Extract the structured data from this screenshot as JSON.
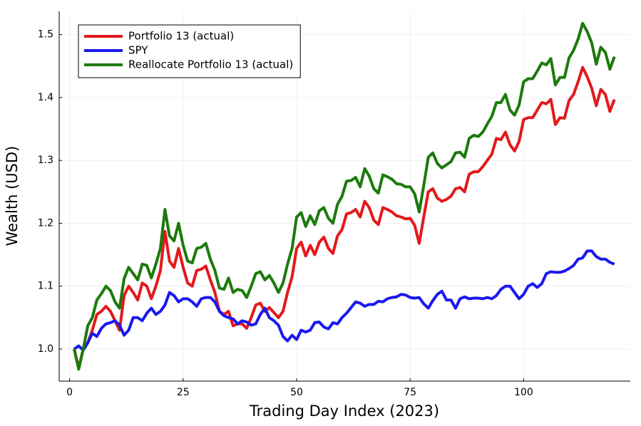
{
  "chart_data": {
    "type": "line",
    "xlabel": "Trading Day Index (2023)",
    "ylabel": "Wealth (USD)",
    "x": [
      1,
      2,
      3,
      4,
      5,
      6,
      7,
      8,
      9,
      10,
      11,
      12,
      13,
      14,
      15,
      16,
      17,
      18,
      19,
      20,
      21,
      22,
      23,
      24,
      25,
      26,
      27,
      28,
      29,
      30,
      31,
      32,
      33,
      34,
      35,
      36,
      37,
      38,
      39,
      40,
      41,
      42,
      43,
      44,
      45,
      46,
      47,
      48,
      49,
      50,
      51,
      52,
      53,
      54,
      55,
      56,
      57,
      58,
      59,
      60,
      61,
      62,
      63,
      64,
      65,
      66,
      67,
      68,
      69,
      70,
      71,
      72,
      73,
      74,
      75,
      76,
      77,
      78,
      79,
      80,
      81,
      82,
      83,
      84,
      85,
      86,
      87,
      88,
      89,
      90,
      91,
      92,
      93,
      94,
      95,
      96,
      97,
      98,
      99,
      100,
      101,
      102,
      103,
      104,
      105,
      106,
      107,
      108,
      109,
      110,
      111,
      112,
      113,
      114,
      115,
      116,
      117,
      118,
      119,
      120
    ],
    "series": [
      {
        "name": "Portfolio 13 (actual)",
        "color": "#e3191c",
        "values": [
          1.0,
          0.97,
          1.0,
          1.01,
          1.03,
          1.055,
          1.06,
          1.068,
          1.06,
          1.045,
          1.03,
          1.085,
          1.1,
          1.09,
          1.078,
          1.105,
          1.1,
          1.08,
          1.1,
          1.125,
          1.187,
          1.14,
          1.13,
          1.16,
          1.13,
          1.105,
          1.1,
          1.125,
          1.127,
          1.132,
          1.11,
          1.09,
          1.06,
          1.055,
          1.06,
          1.037,
          1.04,
          1.04,
          1.033,
          1.05,
          1.07,
          1.073,
          1.06,
          1.066,
          1.058,
          1.05,
          1.06,
          1.09,
          1.115,
          1.16,
          1.17,
          1.148,
          1.165,
          1.15,
          1.17,
          1.178,
          1.16,
          1.152,
          1.18,
          1.19,
          1.215,
          1.217,
          1.222,
          1.21,
          1.235,
          1.225,
          1.205,
          1.198,
          1.225,
          1.222,
          1.218,
          1.212,
          1.21,
          1.207,
          1.208,
          1.197,
          1.168,
          1.21,
          1.25,
          1.255,
          1.24,
          1.235,
          1.238,
          1.243,
          1.255,
          1.257,
          1.25,
          1.278,
          1.282,
          1.282,
          1.29,
          1.3,
          1.31,
          1.335,
          1.333,
          1.345,
          1.325,
          1.315,
          1.33,
          1.365,
          1.368,
          1.368,
          1.38,
          1.392,
          1.39,
          1.397,
          1.357,
          1.368,
          1.367,
          1.395,
          1.405,
          1.425,
          1.448,
          1.433,
          1.415,
          1.387,
          1.413,
          1.405,
          1.378,
          1.397
        ]
      },
      {
        "name": "SPY",
        "color": "#1a18f0",
        "values": [
          1.0,
          1.005,
          0.998,
          1.01,
          1.025,
          1.02,
          1.033,
          1.04,
          1.042,
          1.045,
          1.038,
          1.022,
          1.03,
          1.05,
          1.05,
          1.045,
          1.057,
          1.065,
          1.055,
          1.06,
          1.07,
          1.09,
          1.085,
          1.075,
          1.08,
          1.08,
          1.075,
          1.068,
          1.08,
          1.082,
          1.082,
          1.075,
          1.06,
          1.053,
          1.05,
          1.048,
          1.04,
          1.045,
          1.043,
          1.038,
          1.04,
          1.055,
          1.065,
          1.05,
          1.045,
          1.038,
          1.02,
          1.013,
          1.022,
          1.015,
          1.03,
          1.027,
          1.03,
          1.042,
          1.043,
          1.035,
          1.032,
          1.042,
          1.04,
          1.05,
          1.057,
          1.066,
          1.075,
          1.073,
          1.068,
          1.071,
          1.071,
          1.076,
          1.075,
          1.08,
          1.082,
          1.083,
          1.087,
          1.086,
          1.082,
          1.081,
          1.082,
          1.072,
          1.065,
          1.077,
          1.087,
          1.092,
          1.078,
          1.078,
          1.065,
          1.08,
          1.083,
          1.08,
          1.081,
          1.081,
          1.08,
          1.082,
          1.08,
          1.085,
          1.095,
          1.1,
          1.1,
          1.09,
          1.08,
          1.087,
          1.1,
          1.104,
          1.098,
          1.104,
          1.12,
          1.123,
          1.122,
          1.122,
          1.124,
          1.128,
          1.133,
          1.143,
          1.145,
          1.156,
          1.156,
          1.147,
          1.143,
          1.143,
          1.138,
          1.135
        ]
      },
      {
        "name": "Reallocate Portfolio 13 (actual)",
        "color": "#1c7a0c",
        "values": [
          1.0,
          0.968,
          1.0,
          1.037,
          1.05,
          1.078,
          1.088,
          1.1,
          1.093,
          1.075,
          1.065,
          1.112,
          1.13,
          1.12,
          1.11,
          1.135,
          1.133,
          1.113,
          1.135,
          1.16,
          1.222,
          1.18,
          1.172,
          1.2,
          1.165,
          1.14,
          1.137,
          1.16,
          1.162,
          1.168,
          1.143,
          1.125,
          1.097,
          1.095,
          1.113,
          1.09,
          1.095,
          1.093,
          1.082,
          1.1,
          1.12,
          1.123,
          1.11,
          1.117,
          1.105,
          1.09,
          1.105,
          1.135,
          1.16,
          1.21,
          1.217,
          1.195,
          1.212,
          1.198,
          1.22,
          1.225,
          1.208,
          1.2,
          1.23,
          1.243,
          1.267,
          1.268,
          1.273,
          1.258,
          1.287,
          1.275,
          1.255,
          1.248,
          1.277,
          1.274,
          1.27,
          1.263,
          1.262,
          1.258,
          1.258,
          1.247,
          1.218,
          1.26,
          1.305,
          1.312,
          1.295,
          1.288,
          1.293,
          1.298,
          1.312,
          1.313,
          1.305,
          1.335,
          1.34,
          1.338,
          1.345,
          1.358,
          1.37,
          1.392,
          1.392,
          1.405,
          1.38,
          1.372,
          1.388,
          1.425,
          1.43,
          1.43,
          1.442,
          1.455,
          1.452,
          1.462,
          1.42,
          1.432,
          1.432,
          1.463,
          1.475,
          1.493,
          1.518,
          1.505,
          1.487,
          1.453,
          1.48,
          1.472,
          1.445,
          1.465
        ]
      }
    ],
    "xlim": [
      -2.3,
      123.5
    ],
    "xticks": [
      0,
      25,
      50,
      75,
      100
    ],
    "ylim": [
      0.949,
      1.537
    ],
    "yticks": [
      {
        "value": 1.0,
        "label": "1.0"
      },
      1.1,
      1.2,
      1.3,
      1.4,
      1.5
    ],
    "grid": true,
    "legend": "top-left"
  }
}
